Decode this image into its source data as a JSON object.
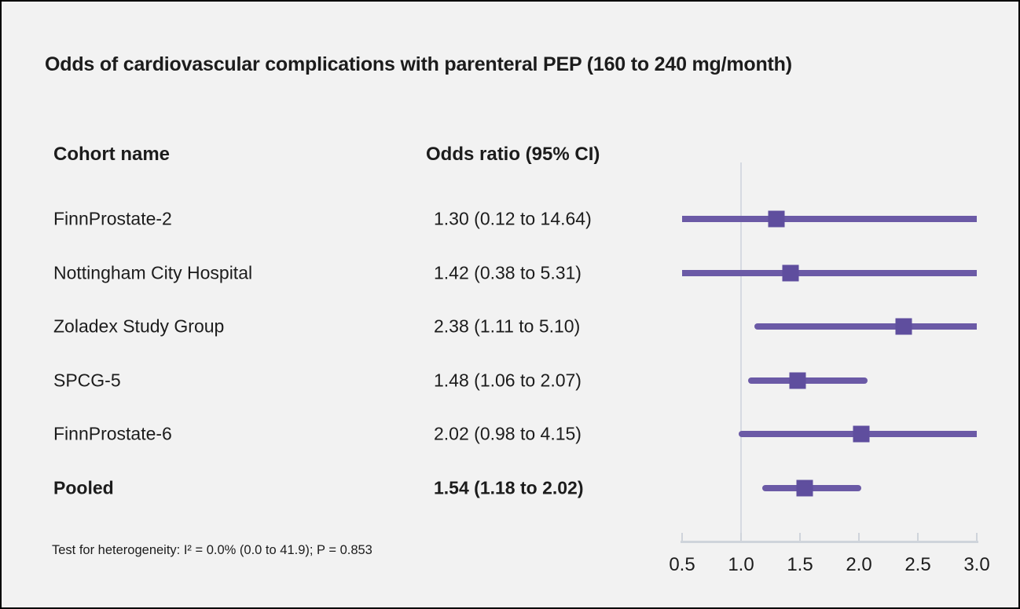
{
  "title": "Odds of cardiovascular complications with parenteral PEP (160 to 240 mg/month)",
  "table": {
    "col1_header": "Cohort name",
    "col2_header": "Odds ratio (95% CI)"
  },
  "footnote": "Test for heterogeneity: I² = 0.0% (0.0 to 41.9); P = 0.853",
  "colors": {
    "background": "#f2f2f2",
    "border": "#000000",
    "ci_line": "#6b5aa6",
    "marker": "#5f4e9e",
    "axis": "#cfd4db",
    "reference_line": "#d6dae2",
    "text": "#1c1c1c"
  },
  "chart_data": {
    "type": "forest",
    "title": "Odds of cardiovascular complications with parenteral PEP (160 to 240 mg/month)",
    "xlabel": "Odds ratio",
    "x_range": [
      0.5,
      3.0
    ],
    "x_scale": "linear",
    "reference_value": 1.0,
    "ticks": [
      "0.5",
      "1.0",
      "1.5",
      "2.0",
      "2.5",
      "3.0"
    ],
    "rows": [
      {
        "label": "FinnProstate-2",
        "or_text": "1.30 (0.12 to 14.64)",
        "estimate": 1.3,
        "ci_low": 0.12,
        "ci_high": 14.64,
        "bold": false
      },
      {
        "label": "Nottingham City Hospital",
        "or_text": "1.42 (0.38 to 5.31)",
        "estimate": 1.42,
        "ci_low": 0.38,
        "ci_high": 5.31,
        "bold": false
      },
      {
        "label": "Zoladex Study Group",
        "or_text": "2.38 (1.11 to 5.10)",
        "estimate": 2.38,
        "ci_low": 1.11,
        "ci_high": 5.1,
        "bold": false
      },
      {
        "label": "SPCG-5",
        "or_text": "1.48 (1.06 to 2.07)",
        "estimate": 1.48,
        "ci_low": 1.06,
        "ci_high": 2.07,
        "bold": false
      },
      {
        "label": "FinnProstate-6",
        "or_text": "2.02 (0.98 to 4.15)",
        "estimate": 2.02,
        "ci_low": 0.98,
        "ci_high": 4.15,
        "bold": false
      },
      {
        "label": "Pooled",
        "or_text": "1.54 (1.18 to 2.02)",
        "estimate": 1.54,
        "ci_low": 1.18,
        "ci_high": 2.02,
        "bold": true
      }
    ],
    "heterogeneity_note": "Test for heterogeneity: I² = 0.0% (0.0 to 41.9); P = 0.853"
  }
}
